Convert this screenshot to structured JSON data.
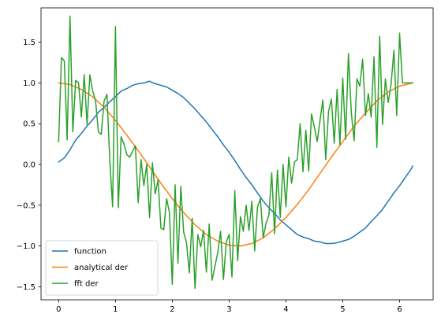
{
  "chart_data": {
    "type": "line",
    "title": "",
    "xlabel": "",
    "ylabel": "",
    "xlim": [
      -0.31,
      6.59
    ],
    "ylim": [
      -1.66,
      1.92
    ],
    "xticks": [
      0,
      1,
      2,
      3,
      4,
      5,
      6
    ],
    "xtick_labels": [
      "0",
      "1",
      "2",
      "3",
      "4",
      "5",
      "6"
    ],
    "yticks": [
      -1.5,
      -1.0,
      -0.5,
      0.0,
      0.5,
      1.0,
      1.5
    ],
    "ytick_labels": [
      "−1.5",
      "−1.0",
      "−0.5",
      "0.0",
      "0.5",
      "1.0",
      "1.5"
    ],
    "grid": false,
    "legend_position": "lower-left",
    "series": [
      {
        "name": "function",
        "color": "#1f77b4",
        "x": [
          0.0,
          0.1,
          0.2,
          0.3,
          0.4,
          0.5,
          0.6,
          0.7,
          0.8,
          0.9,
          1.0,
          1.1,
          1.2,
          1.3,
          1.4,
          1.5,
          1.6,
          1.7,
          1.8,
          1.9,
          2.0,
          2.1,
          2.2,
          2.3,
          2.4,
          2.5,
          2.6,
          2.7,
          2.8,
          2.9,
          3.0,
          3.1,
          3.2,
          3.3,
          3.4,
          3.5,
          3.6,
          3.7,
          3.8,
          3.9,
          4.0,
          4.1,
          4.2,
          4.3,
          4.4,
          4.5,
          4.6,
          4.7,
          4.8,
          4.9,
          5.0,
          5.1,
          5.2,
          5.3,
          5.4,
          5.5,
          5.6,
          5.7,
          5.8,
          5.9,
          6.0,
          6.1,
          6.2,
          6.23
        ],
        "y": [
          0.03,
          0.08,
          0.18,
          0.3,
          0.38,
          0.47,
          0.55,
          0.64,
          0.7,
          0.77,
          0.83,
          0.9,
          0.93,
          0.97,
          0.99,
          1.0,
          1.02,
          0.99,
          0.97,
          0.95,
          0.91,
          0.87,
          0.82,
          0.75,
          0.68,
          0.6,
          0.52,
          0.43,
          0.34,
          0.24,
          0.15,
          0.05,
          -0.06,
          -0.16,
          -0.25,
          -0.35,
          -0.45,
          -0.53,
          -0.6,
          -0.68,
          -0.74,
          -0.8,
          -0.86,
          -0.89,
          -0.91,
          -0.94,
          -0.95,
          -0.97,
          -0.97,
          -0.96,
          -0.94,
          -0.92,
          -0.88,
          -0.83,
          -0.78,
          -0.7,
          -0.63,
          -0.55,
          -0.45,
          -0.35,
          -0.26,
          -0.16,
          -0.06,
          -0.02
        ]
      },
      {
        "name": "analytical der",
        "color": "#ff7f0e",
        "x": [
          0.0,
          0.2,
          0.4,
          0.6,
          0.8,
          1.0,
          1.2,
          1.4,
          1.6,
          1.8,
          2.0,
          2.2,
          2.4,
          2.6,
          2.8,
          3.0,
          3.2,
          3.4,
          3.6,
          3.8,
          4.0,
          4.2,
          4.4,
          4.6,
          4.8,
          5.0,
          5.2,
          5.4,
          5.6,
          5.8,
          6.0,
          6.23
        ],
        "y": [
          1.0,
          0.98,
          0.92,
          0.83,
          0.7,
          0.54,
          0.36,
          0.17,
          -0.03,
          -0.23,
          -0.42,
          -0.59,
          -0.74,
          -0.86,
          -0.94,
          -0.99,
          -1.0,
          -0.97,
          -0.9,
          -0.79,
          -0.65,
          -0.49,
          -0.31,
          -0.11,
          0.09,
          0.28,
          0.47,
          0.63,
          0.78,
          0.89,
          0.96,
          1.0
        ]
      },
      {
        "name": "fft der",
        "color": "#2ca02c",
        "x": [
          0.0,
          0.05,
          0.1,
          0.15,
          0.2,
          0.25,
          0.3,
          0.35,
          0.4,
          0.45,
          0.5,
          0.55,
          0.6,
          0.65,
          0.7,
          0.75,
          0.8,
          0.85,
          0.9,
          0.95,
          1.0,
          1.05,
          1.1,
          1.15,
          1.2,
          1.25,
          1.3,
          1.35,
          1.4,
          1.45,
          1.5,
          1.55,
          1.6,
          1.65,
          1.7,
          1.75,
          1.8,
          1.85,
          1.9,
          1.95,
          2.0,
          2.05,
          2.1,
          2.15,
          2.2,
          2.25,
          2.3,
          2.35,
          2.4,
          2.45,
          2.5,
          2.55,
          2.6,
          2.65,
          2.7,
          2.75,
          2.8,
          2.85,
          2.9,
          2.95,
          3.0,
          3.05,
          3.1,
          3.15,
          3.2,
          3.25,
          3.3,
          3.35,
          3.4,
          3.45,
          3.5,
          3.55,
          3.6,
          3.65,
          3.7,
          3.75,
          3.8,
          3.85,
          3.9,
          3.95,
          4.0,
          4.05,
          4.1,
          4.15,
          4.2,
          4.25,
          4.3,
          4.35,
          4.4,
          4.45,
          4.5,
          4.55,
          4.6,
          4.65,
          4.7,
          4.75,
          4.8,
          4.85,
          4.9,
          4.95,
          5.0,
          5.05,
          5.1,
          5.15,
          5.2,
          5.25,
          5.3,
          5.35,
          5.4,
          5.45,
          5.5,
          5.55,
          5.6,
          5.65,
          5.7,
          5.75,
          5.8,
          5.85,
          5.9,
          5.95,
          6.0,
          6.05,
          6.1,
          6.15,
          6.2,
          6.23
        ],
        "y": [
          0.28,
          1.31,
          1.27,
          0.3,
          1.82,
          0.4,
          1.03,
          1.0,
          0.58,
          1.1,
          0.49,
          1.1,
          0.9,
          0.78,
          0.4,
          0.37,
          0.78,
          0.86,
          0.05,
          -0.52,
          1.69,
          -0.53,
          0.34,
          0.25,
          0.12,
          0.09,
          0.16,
          0.23,
          -0.47,
          0.06,
          -0.26,
          0.0,
          -0.65,
          0.02,
          -0.36,
          -0.19,
          -0.78,
          -0.8,
          -0.42,
          -0.59,
          -1.47,
          -0.25,
          -1.21,
          -0.27,
          -0.83,
          -0.96,
          -1.33,
          -0.66,
          -1.52,
          -0.86,
          -1.01,
          -0.81,
          -1.32,
          -0.73,
          -1.42,
          -1.25,
          -1.08,
          -0.82,
          -1.41,
          -0.95,
          -0.86,
          -1.38,
          -0.32,
          -1.18,
          -0.64,
          -0.82,
          -0.5,
          -0.81,
          -0.45,
          -1.06,
          -0.52,
          -0.42,
          -0.9,
          -0.72,
          -0.62,
          -0.1,
          -0.85,
          -0.07,
          -0.65,
          0.0,
          -0.52,
          0.09,
          -0.23,
          0.03,
          0.06,
          0.5,
          -0.09,
          0.42,
          -0.08,
          0.62,
          0.46,
          0.28,
          0.54,
          0.79,
          0.06,
          0.65,
          0.8,
          0.26,
          0.92,
          0.24,
          1.06,
          0.31,
          1.36,
          0.64,
          0.29,
          1.05,
          0.96,
          1.29,
          0.6,
          0.87,
          0.58,
          1.32,
          0.21,
          1.57,
          0.49,
          1.05,
          0.76,
          0.98,
          1.4,
          0.6,
          1.61,
          1.0,
          1.0,
          1.0,
          1.0,
          1.0
        ]
      }
    ]
  }
}
